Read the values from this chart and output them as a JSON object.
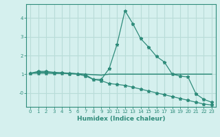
{
  "xlabel": "Humidex (Indice chaleur)",
  "x": [
    0,
    1,
    2,
    3,
    4,
    5,
    6,
    7,
    8,
    9,
    10,
    11,
    12,
    13,
    14,
    15,
    16,
    17,
    18,
    19,
    20,
    21,
    22,
    23
  ],
  "line1": [
    1.05,
    1.15,
    1.15,
    1.1,
    1.08,
    1.05,
    1.02,
    0.97,
    0.72,
    0.72,
    1.3,
    2.6,
    4.4,
    3.7,
    2.9,
    2.45,
    1.95,
    1.65,
    1.0,
    0.9,
    0.85,
    -0.05,
    -0.35,
    -0.5
  ],
  "line2": [
    1.05,
    1.1,
    1.1,
    1.05,
    1.05,
    1.05,
    1.02,
    1.0,
    0.97,
    0.95,
    1.0,
    1.0,
    1.0,
    1.0,
    1.0,
    1.0,
    1.0,
    1.0,
    1.0,
    1.0,
    1.0,
    1.0,
    1.0,
    1.0
  ],
  "line3": [
    1.05,
    1.05,
    1.05,
    1.05,
    1.05,
    1.02,
    1.0,
    0.9,
    0.72,
    0.65,
    0.5,
    0.45,
    0.4,
    0.3,
    0.2,
    0.1,
    0.0,
    -0.1,
    -0.2,
    -0.3,
    -0.4,
    -0.5,
    -0.6,
    -0.65
  ],
  "line_color": "#2e8b7a",
  "bg_color": "#d5f0ee",
  "grid_color": "#b8dcd8",
  "ylim": [
    -0.75,
    4.75
  ],
  "xlim": [
    -0.5,
    23.5
  ],
  "yticks": [
    0,
    1,
    2,
    3,
    4
  ],
  "ytick_labels": [
    "-0",
    "1",
    "2",
    "3",
    "4"
  ],
  "xticks": [
    0,
    1,
    2,
    3,
    4,
    5,
    6,
    7,
    8,
    9,
    10,
    11,
    12,
    13,
    14,
    15,
    16,
    17,
    18,
    19,
    20,
    21,
    22,
    23
  ]
}
